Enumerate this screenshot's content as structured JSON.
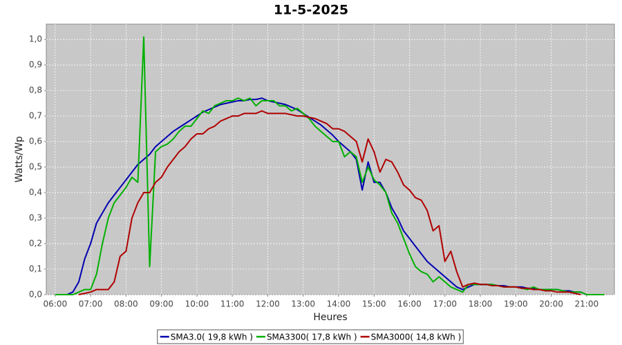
{
  "chart_data": {
    "type": "line",
    "title": "11-5-2025",
    "x_label": "Heures",
    "y_label": "Watts/Wp",
    "x": [
      "06:00",
      "06:10",
      "06:20",
      "06:30",
      "06:40",
      "06:50",
      "07:00",
      "07:10",
      "07:20",
      "07:30",
      "07:40",
      "07:50",
      "08:00",
      "08:10",
      "08:20",
      "08:30",
      "08:40",
      "08:50",
      "09:00",
      "09:10",
      "09:20",
      "09:30",
      "09:40",
      "09:50",
      "10:00",
      "10:10",
      "10:20",
      "10:30",
      "10:40",
      "10:50",
      "11:00",
      "11:10",
      "11:20",
      "11:30",
      "11:40",
      "11:50",
      "12:00",
      "12:10",
      "12:20",
      "12:30",
      "12:40",
      "12:50",
      "13:00",
      "13:10",
      "13:20",
      "13:30",
      "13:40",
      "13:50",
      "14:00",
      "14:10",
      "14:20",
      "14:30",
      "14:40",
      "14:50",
      "15:00",
      "15:10",
      "15:20",
      "15:30",
      "15:40",
      "15:50",
      "16:00",
      "16:10",
      "16:20",
      "16:30",
      "16:40",
      "16:50",
      "17:00",
      "17:10",
      "17:20",
      "17:30",
      "17:40",
      "17:50",
      "18:00",
      "18:10",
      "18:20",
      "18:30",
      "18:40",
      "18:50",
      "19:00",
      "19:10",
      "19:20",
      "19:30",
      "19:40",
      "19:50",
      "20:00",
      "20:10",
      "20:20",
      "20:30",
      "20:40",
      "20:50",
      "21:00",
      "21:10",
      "21:20",
      "21:30"
    ],
    "series": [
      {
        "name": "SMA3.0( 19,8 kWh )",
        "color": "#0000b0",
        "values": [
          null,
          null,
          0,
          0.01,
          0.05,
          0.14,
          0.2,
          0.28,
          0.32,
          0.36,
          0.39,
          0.42,
          0.45,
          0.48,
          0.51,
          0.53,
          0.55,
          0.58,
          0.6,
          0.62,
          0.64,
          0.655,
          0.67,
          0.685,
          0.7,
          0.715,
          0.725,
          0.735,
          0.745,
          0.75,
          0.755,
          0.76,
          0.76,
          0.765,
          0.765,
          0.77,
          0.76,
          0.755,
          0.75,
          0.745,
          0.735,
          0.725,
          0.71,
          0.695,
          0.68,
          0.665,
          0.645,
          0.625,
          0.6,
          0.58,
          0.56,
          0.53,
          0.41,
          0.52,
          0.44,
          0.44,
          0.4,
          0.34,
          0.3,
          0.25,
          0.22,
          0.19,
          0.16,
          0.13,
          0.11,
          0.09,
          0.07,
          0.05,
          0.03,
          0.02,
          0.03,
          0.04,
          0.04,
          0.04,
          0.04,
          0.035,
          0.035,
          0.03,
          0.03,
          0.03,
          0.025,
          0.025,
          0.02,
          0.02,
          0.02,
          0.02,
          0.015,
          0.015,
          0.01,
          0.01,
          0,
          null,
          null,
          null
        ]
      },
      {
        "name": "SMA3300( 17,8 kWh )",
        "color": "#00b000",
        "values": [
          0,
          0,
          0,
          0,
          0.01,
          0.02,
          0.02,
          0.08,
          0.2,
          0.3,
          0.36,
          0.39,
          0.42,
          0.46,
          0.44,
          1.01,
          0.11,
          0.56,
          0.58,
          0.59,
          0.61,
          0.64,
          0.66,
          0.66,
          0.69,
          0.72,
          0.71,
          0.74,
          0.75,
          0.76,
          0.76,
          0.77,
          0.76,
          0.77,
          0.74,
          0.76,
          0.76,
          0.76,
          0.74,
          0.74,
          0.72,
          0.73,
          0.71,
          0.69,
          0.66,
          0.64,
          0.62,
          0.6,
          0.6,
          0.54,
          0.56,
          0.54,
          0.44,
          0.5,
          0.45,
          0.43,
          0.4,
          0.32,
          0.28,
          0.22,
          0.16,
          0.11,
          0.09,
          0.08,
          0.05,
          0.07,
          0.05,
          0.03,
          0.02,
          0.01,
          0.04,
          0.04,
          0.04,
          0.04,
          0.04,
          0.035,
          0.03,
          0.03,
          0.03,
          0.025,
          0.02,
          0.03,
          0.02,
          0.02,
          0.02,
          0.02,
          0.015,
          0.01,
          0.01,
          0.01,
          0,
          0,
          0,
          0
        ]
      },
      {
        "name": "SMA3000( 14,8 kWh )",
        "color": "#b00000",
        "values": [
          null,
          null,
          null,
          null,
          0,
          0.005,
          0.01,
          0.02,
          0.02,
          0.02,
          0.05,
          0.15,
          0.17,
          0.3,
          0.36,
          0.4,
          0.4,
          0.44,
          0.46,
          0.5,
          0.53,
          0.56,
          0.58,
          0.61,
          0.63,
          0.63,
          0.65,
          0.66,
          0.68,
          0.69,
          0.7,
          0.7,
          0.71,
          0.71,
          0.71,
          0.72,
          0.71,
          0.71,
          0.71,
          0.71,
          0.705,
          0.7,
          0.7,
          0.695,
          0.69,
          0.68,
          0.67,
          0.65,
          0.65,
          0.64,
          0.62,
          0.6,
          0.52,
          0.61,
          0.56,
          0.48,
          0.53,
          0.52,
          0.48,
          0.43,
          0.41,
          0.38,
          0.37,
          0.33,
          0.25,
          0.27,
          0.13,
          0.17,
          0.09,
          0.03,
          0.04,
          0.045,
          0.04,
          0.04,
          0.035,
          0.035,
          0.03,
          0.03,
          0.03,
          0.025,
          0.025,
          0.02,
          0.02,
          0.015,
          0.015,
          0.01,
          0.01,
          0.01,
          0.005,
          0,
          null,
          null,
          null,
          null
        ]
      }
    ],
    "xlim": [
      "05:45",
      "21:47"
    ],
    "xticks": [
      "06:00",
      "07:00",
      "08:00",
      "09:00",
      "10:00",
      "11:00",
      "12:00",
      "13:00",
      "14:00",
      "15:00",
      "16:00",
      "17:00",
      "18:00",
      "19:00",
      "20:00",
      "21:00"
    ],
    "ylim": [
      0,
      1.06
    ],
    "yticks": [
      {
        "value": 0,
        "label": "0,0"
      },
      {
        "value": 0.1,
        "label": "0,1"
      },
      {
        "value": 0.2,
        "label": "0,2"
      },
      {
        "value": 0.3,
        "label": "0,3"
      },
      {
        "value": 0.4,
        "label": "0,4"
      },
      {
        "value": 0.5,
        "label": "0,5"
      },
      {
        "value": 0.6,
        "label": "0,6"
      },
      {
        "value": 0.7,
        "label": "0,7"
      },
      {
        "value": 0.8,
        "label": "0,8"
      },
      {
        "value": 0.9,
        "label": "0,9"
      },
      {
        "value": 1.0,
        "label": "1,0"
      }
    ],
    "grid": true,
    "legend": "bottom"
  }
}
